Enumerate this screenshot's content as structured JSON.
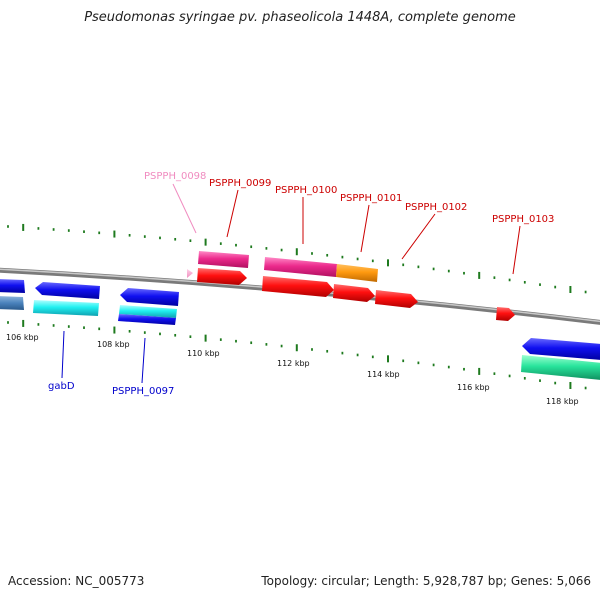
{
  "title": "Pseudomonas syringae pv. phaseolicola 1448A, complete genome",
  "footer": {
    "accession": "Accession: NC_005773",
    "summary": "Topology: circular; Length: 5,928,787 bp; Genes: 5,066"
  },
  "colors": {
    "backbone": "#8c8c8c",
    "tick": "#1e7a1e",
    "label_red": "#cc0000",
    "label_pink": "#f08cc0",
    "label_blue": "#0000cc"
  },
  "kbp_labels": [
    "106 kbp",
    "108 kbp",
    "110 kbp",
    "112 kbp",
    "114 kbp",
    "116 kbp",
    "118 kbp"
  ],
  "gene_labels": [
    {
      "text": "PSPPH_0098",
      "color": "#f08cc0"
    },
    {
      "text": "PSPPH_0099",
      "color": "#cc0000"
    },
    {
      "text": "PSPPH_0100",
      "color": "#cc0000"
    },
    {
      "text": "PSPPH_0101",
      "color": "#cc0000"
    },
    {
      "text": "PSPPH_0102",
      "color": "#cc0000"
    },
    {
      "text": "PSPPH_0103",
      "color": "#cc0000"
    },
    {
      "text": "gabD",
      "color": "#0000cc"
    },
    {
      "text": "PSPPH_0097",
      "color": "#0000cc"
    }
  ]
}
